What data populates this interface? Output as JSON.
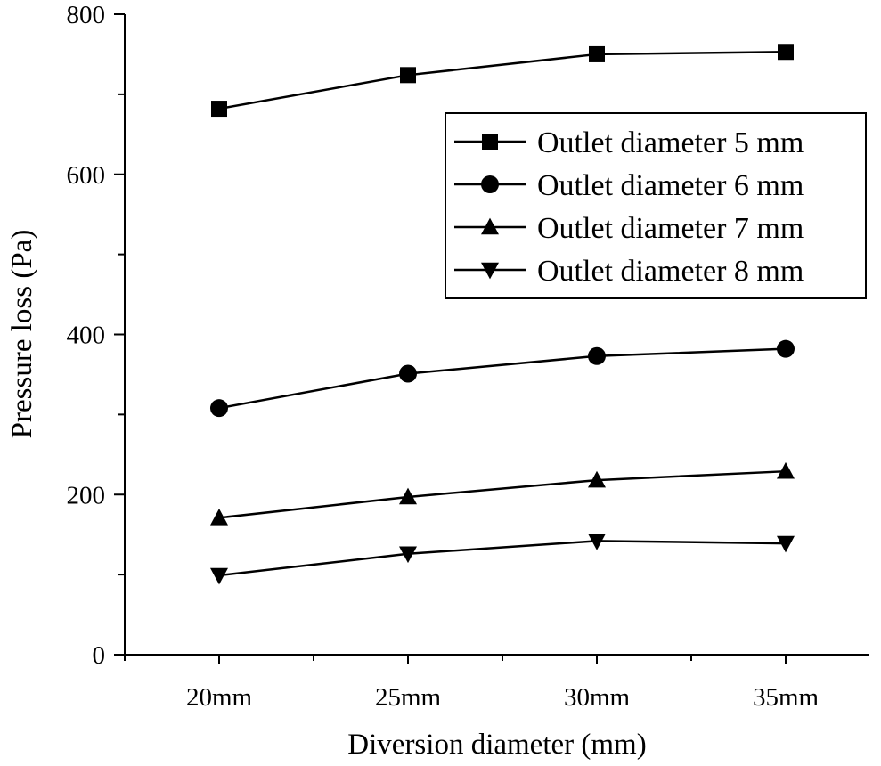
{
  "chart_data": {
    "type": "line",
    "categories": [
      "20mm",
      "25mm",
      "30mm",
      "35mm"
    ],
    "series": [
      {
        "name": "Outlet diameter 5 mm",
        "marker": "square",
        "values": [
          682,
          724,
          750,
          753
        ]
      },
      {
        "name": "Outlet diameter 6 mm",
        "marker": "circle",
        "values": [
          308,
          351,
          373,
          382
        ]
      },
      {
        "name": "Outlet diameter 7 mm",
        "marker": "triangle-up",
        "values": [
          171,
          197,
          218,
          229
        ]
      },
      {
        "name": "Outlet diameter 8 mm",
        "marker": "triangle-down",
        "values": [
          99,
          126,
          142,
          139
        ]
      }
    ],
    "xlabel": "Diversion diameter (mm)",
    "ylabel": "Pressure loss (Pa)",
    "ylim": [
      0,
      800
    ],
    "yticks": [
      "0",
      "200",
      "400",
      "600",
      "800"
    ],
    "grid": false,
    "legend_position": "upper-right",
    "colors": {
      "line": "#000000",
      "background": "#ffffff"
    }
  }
}
